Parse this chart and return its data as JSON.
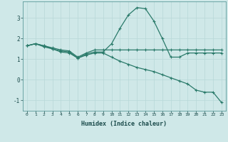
{
  "xlabel": "Humidex (Indice chaleur)",
  "bg_color": "#cfe8e8",
  "grid_color": "#b8d8d8",
  "line_color": "#2a7a6a",
  "xlim": [
    -0.5,
    23.5
  ],
  "ylim": [
    -1.5,
    3.8
  ],
  "yticks": [
    -1,
    0,
    1,
    2,
    3
  ],
  "xticks": [
    0,
    1,
    2,
    3,
    4,
    5,
    6,
    7,
    8,
    9,
    10,
    11,
    12,
    13,
    14,
    15,
    16,
    17,
    18,
    19,
    20,
    21,
    22,
    23
  ],
  "line1_x": [
    0,
    1,
    2,
    3,
    4,
    5,
    6,
    7,
    8,
    9,
    10,
    11,
    12,
    13,
    14,
    15,
    16,
    17,
    18,
    19,
    20,
    21,
    22,
    23
  ],
  "line1_y": [
    1.65,
    1.75,
    1.65,
    1.55,
    1.45,
    1.4,
    1.1,
    1.3,
    1.45,
    1.45,
    1.45,
    1.45,
    1.45,
    1.45,
    1.45,
    1.45,
    1.45,
    1.45,
    1.45,
    1.45,
    1.45,
    1.45,
    1.45,
    1.45
  ],
  "line2_x": [
    0,
    1,
    2,
    3,
    4,
    5,
    6,
    7,
    8,
    9,
    10,
    11,
    12,
    13,
    14,
    15,
    16,
    17,
    18,
    19,
    20,
    21,
    22,
    23
  ],
  "line2_y": [
    1.65,
    1.75,
    1.65,
    1.5,
    1.4,
    1.35,
    1.05,
    1.25,
    1.35,
    1.35,
    1.75,
    2.5,
    3.15,
    3.5,
    3.45,
    2.85,
    2.0,
    1.1,
    1.1,
    1.3,
    1.3,
    1.3,
    1.3,
    1.3
  ],
  "line3_x": [
    0,
    1,
    2,
    3,
    4,
    5,
    6,
    7,
    8,
    9,
    10,
    11,
    12,
    13,
    14,
    15,
    16,
    17,
    18,
    19,
    20,
    21,
    22,
    23
  ],
  "line3_y": [
    1.65,
    1.75,
    1.6,
    1.5,
    1.35,
    1.3,
    1.05,
    1.2,
    1.3,
    1.3,
    1.1,
    0.9,
    0.75,
    0.6,
    0.5,
    0.4,
    0.25,
    0.1,
    -0.05,
    -0.2,
    -0.5,
    -0.6,
    -0.6,
    -1.1
  ]
}
